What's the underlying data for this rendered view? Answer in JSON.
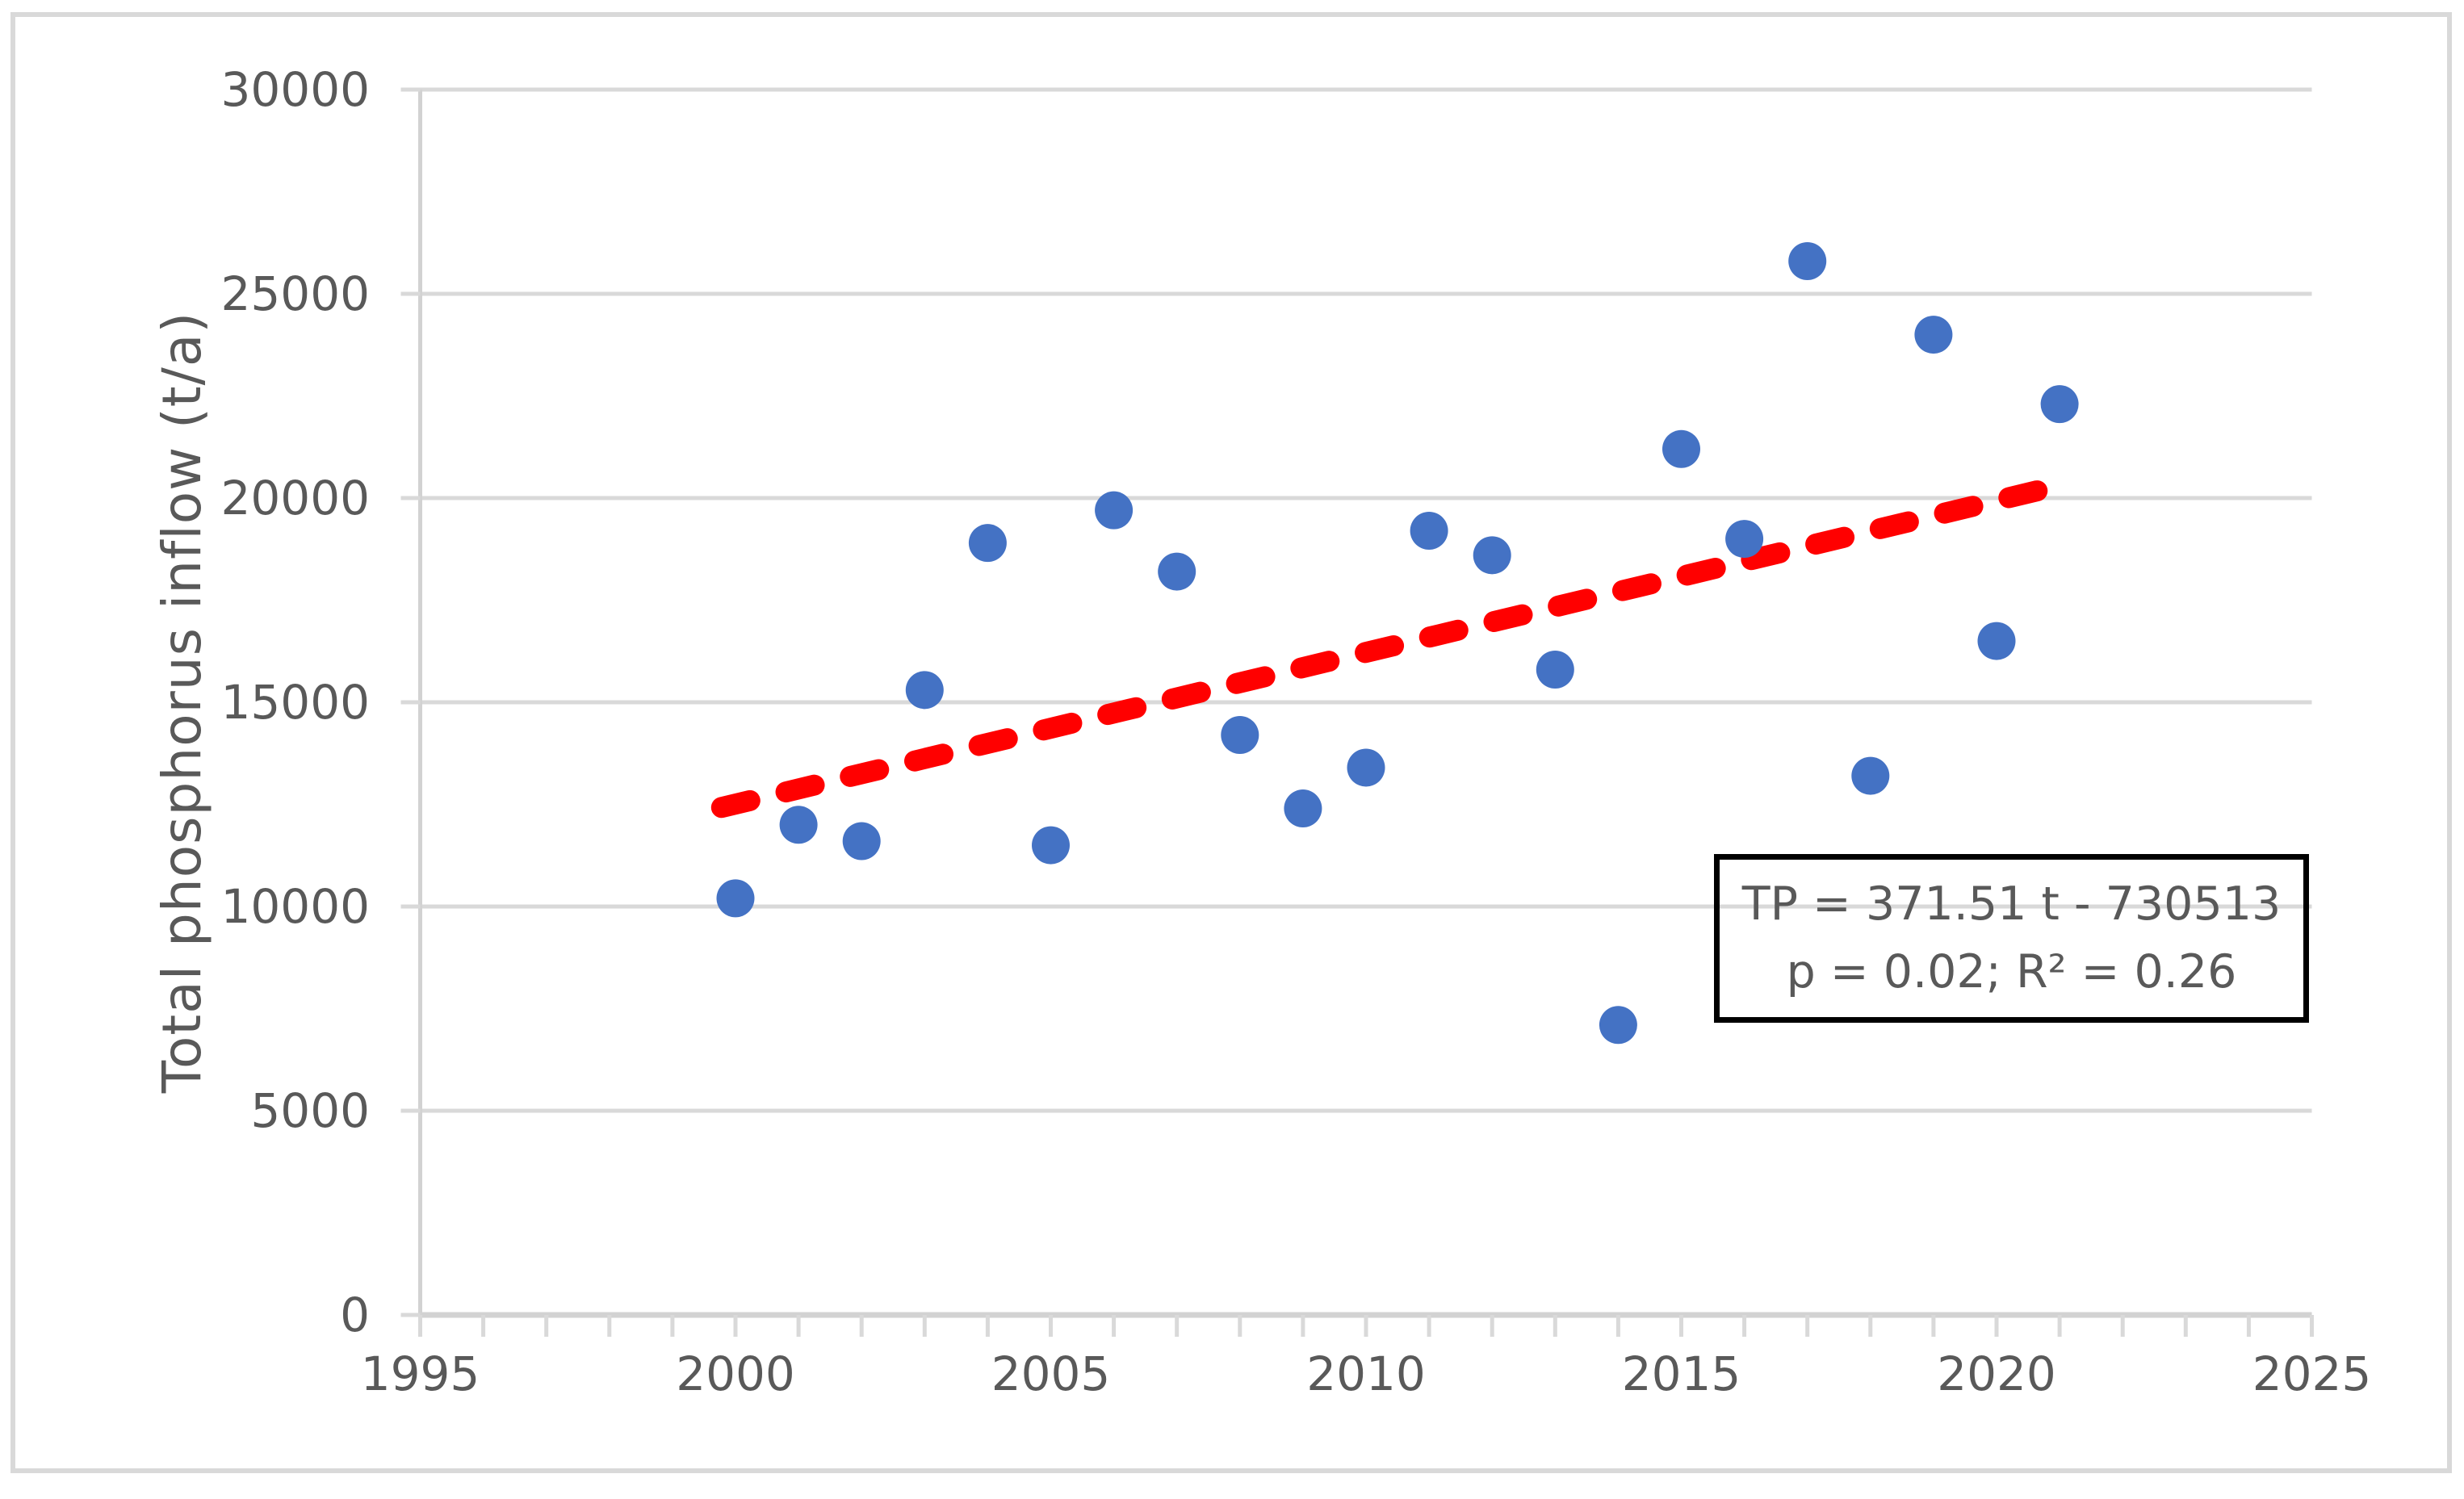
{
  "figure": {
    "background": "#FFFFFF",
    "outer_border_color": "#D9D9D9"
  },
  "chart_data": {
    "type": "scatter",
    "title": "",
    "xlabel": "",
    "ylabel": "Total phosphorus inflow (t/a)",
    "series": [
      {
        "name": "Total phosphorus inflow",
        "x": [
          2000,
          2001,
          2002,
          2003,
          2004,
          2005,
          2006,
          2007,
          2008,
          2009,
          2010,
          2011,
          2012,
          2013,
          2014,
          2015,
          2016,
          2017,
          2018,
          2019,
          2020,
          2021
        ],
        "y": [
          10200,
          12000,
          11600,
          15300,
          18900,
          11500,
          19700,
          18200,
          14200,
          12400,
          13400,
          19200,
          18600,
          15800,
          7100,
          21200,
          19000,
          25800,
          13200,
          24000,
          16500,
          22300
        ]
      }
    ],
    "xlim": [
      1995,
      2025
    ],
    "ylim": [
      0,
      30000
    ],
    "x_ticks": [
      1995,
      2000,
      2005,
      2010,
      2015,
      2020,
      2025
    ],
    "x_minor_tick_step": 1,
    "y_ticks": [
      0,
      5000,
      10000,
      15000,
      20000,
      25000,
      30000
    ],
    "grid": "horizontal",
    "legend": "none",
    "marker_color": "#4472C4",
    "gridline_color": "#D9D9D9",
    "axis_line_color": "#D2D2D2",
    "tick_label_color": "#595959",
    "trendline": {
      "type": "linear",
      "slope": 371.51,
      "intercept": -730513,
      "t_start": 1999.78,
      "t_end": 2021.2,
      "color": "#FF0000",
      "style": "dashed"
    },
    "annotation": {
      "line1": "TP = 371.51 t - 730513",
      "line2": "p = 0.02; R² = 0.26"
    }
  }
}
